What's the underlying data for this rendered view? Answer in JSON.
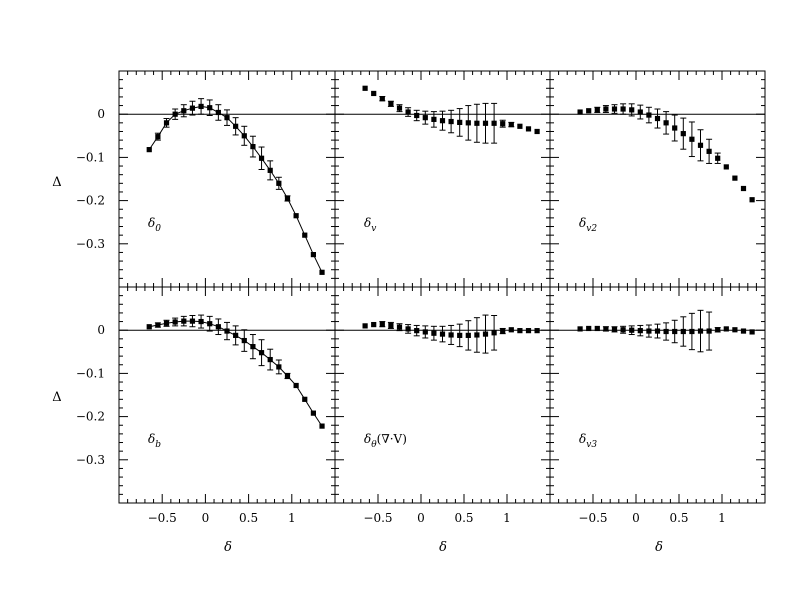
{
  "figure": {
    "xlabel": "δ",
    "ylabel": "Δ",
    "xticks": [
      -0.5,
      0,
      0.5,
      1
    ],
    "yticks": [
      0,
      -0.1,
      -0.2,
      -0.3
    ]
  },
  "chart_data": [
    {
      "type": "line",
      "panel_label": "δ_0",
      "xlabel": "δ",
      "ylabel": "Δ",
      "xlim": [
        -1.0,
        1.5
      ],
      "ylim": [
        -0.4,
        0.1
      ],
      "zero_line": true,
      "connected": true,
      "x": [
        -0.65,
        -0.55,
        -0.45,
        -0.35,
        -0.25,
        -0.15,
        -0.05,
        0.05,
        0.15,
        0.25,
        0.35,
        0.45,
        0.55,
        0.65,
        0.75,
        0.85,
        0.95,
        1.05,
        1.15,
        1.25,
        1.35
      ],
      "y": [
        -0.082,
        -0.052,
        -0.02,
        0.0,
        0.008,
        0.014,
        0.018,
        0.015,
        0.004,
        -0.008,
        -0.028,
        -0.05,
        -0.075,
        -0.102,
        -0.13,
        -0.16,
        -0.195,
        -0.235,
        -0.28,
        -0.325,
        -0.366
      ],
      "err": [
        0.004,
        0.008,
        0.01,
        0.012,
        0.014,
        0.016,
        0.018,
        0.018,
        0.018,
        0.018,
        0.02,
        0.022,
        0.024,
        0.026,
        0.022,
        0.014,
        0.006,
        0.004,
        0.004,
        0.004,
        0.003
      ]
    },
    {
      "type": "line",
      "panel_label": "δ_v",
      "xlabel": "δ",
      "ylabel": "Δ",
      "xlim": [
        -1.0,
        1.5
      ],
      "ylim": [
        -0.4,
        0.1
      ],
      "zero_line": true,
      "connected": false,
      "x": [
        -0.65,
        -0.55,
        -0.45,
        -0.35,
        -0.25,
        -0.15,
        -0.05,
        0.05,
        0.15,
        0.25,
        0.35,
        0.45,
        0.55,
        0.65,
        0.75,
        0.85,
        0.95,
        1.05,
        1.15,
        1.25,
        1.35
      ],
      "y": [
        0.06,
        0.048,
        0.036,
        0.024,
        0.014,
        0.005,
        -0.003,
        -0.008,
        -0.012,
        -0.015,
        -0.017,
        -0.019,
        -0.02,
        -0.021,
        -0.021,
        -0.021,
        -0.022,
        -0.024,
        -0.028,
        -0.034,
        -0.04
      ],
      "err": [
        0.004,
        0.004,
        0.005,
        0.006,
        0.008,
        0.01,
        0.012,
        0.015,
        0.018,
        0.022,
        0.026,
        0.032,
        0.04,
        0.044,
        0.046,
        0.046,
        0.008,
        0.005,
        0.004,
        0.004,
        0.004
      ]
    },
    {
      "type": "line",
      "panel_label": "δ_v2",
      "xlabel": "δ",
      "ylabel": "Δ",
      "xlim": [
        -1.0,
        1.5
      ],
      "ylim": [
        -0.4,
        0.1
      ],
      "zero_line": true,
      "connected": false,
      "x": [
        -0.65,
        -0.55,
        -0.45,
        -0.35,
        -0.25,
        -0.15,
        -0.05,
        0.05,
        0.15,
        0.25,
        0.35,
        0.45,
        0.55,
        0.65,
        0.75,
        0.85,
        0.95,
        1.05,
        1.15,
        1.25,
        1.35
      ],
      "y": [
        0.005,
        0.008,
        0.01,
        0.012,
        0.012,
        0.012,
        0.01,
        0.005,
        -0.002,
        -0.01,
        -0.02,
        -0.032,
        -0.045,
        -0.058,
        -0.072,
        -0.086,
        -0.102,
        -0.122,
        -0.148,
        -0.172,
        -0.198
      ],
      "err": [
        0.003,
        0.004,
        0.006,
        0.008,
        0.01,
        0.012,
        0.014,
        0.016,
        0.018,
        0.022,
        0.026,
        0.03,
        0.036,
        0.04,
        0.036,
        0.028,
        0.012,
        0.004,
        0.003,
        0.003,
        0.003
      ]
    },
    {
      "type": "line",
      "panel_label": "δ_b",
      "xlabel": "δ",
      "ylabel": "Δ",
      "xlim": [
        -1.0,
        1.5
      ],
      "ylim": [
        -0.4,
        0.1
      ],
      "zero_line": true,
      "connected": true,
      "x": [
        -0.65,
        -0.55,
        -0.45,
        -0.35,
        -0.25,
        -0.15,
        -0.05,
        0.05,
        0.15,
        0.25,
        0.35,
        0.45,
        0.55,
        0.65,
        0.75,
        0.85,
        0.95,
        1.05,
        1.15,
        1.25,
        1.35
      ],
      "y": [
        0.008,
        0.012,
        0.016,
        0.019,
        0.021,
        0.021,
        0.02,
        0.015,
        0.008,
        -0.002,
        -0.012,
        -0.024,
        -0.038,
        -0.052,
        -0.068,
        -0.085,
        -0.106,
        -0.128,
        -0.16,
        -0.192,
        -0.222
      ],
      "err": [
        0.003,
        0.005,
        0.007,
        0.009,
        0.011,
        0.013,
        0.015,
        0.017,
        0.018,
        0.02,
        0.022,
        0.025,
        0.028,
        0.03,
        0.024,
        0.016,
        0.006,
        0.004,
        0.004,
        0.004,
        0.003
      ]
    },
    {
      "type": "line",
      "panel_label": "δ_θ(∇·V)",
      "xlabel": "δ",
      "ylabel": "Δ",
      "xlim": [
        -1.0,
        1.5
      ],
      "ylim": [
        -0.4,
        0.1
      ],
      "zero_line": true,
      "connected": false,
      "x": [
        -0.65,
        -0.55,
        -0.45,
        -0.35,
        -0.25,
        -0.15,
        -0.05,
        0.05,
        0.15,
        0.25,
        0.35,
        0.45,
        0.55,
        0.65,
        0.75,
        0.85,
        0.95,
        1.05,
        1.15,
        1.25,
        1.35
      ],
      "y": [
        0.01,
        0.013,
        0.014,
        0.011,
        0.007,
        0.003,
        -0.001,
        -0.004,
        -0.007,
        -0.009,
        -0.011,
        -0.012,
        -0.012,
        -0.011,
        -0.009,
        -0.006,
        -0.002,
        0.001,
        -0.001,
        -0.001,
        -0.001
      ],
      "err": [
        0.003,
        0.004,
        0.006,
        0.007,
        0.008,
        0.01,
        0.012,
        0.014,
        0.016,
        0.018,
        0.022,
        0.026,
        0.034,
        0.04,
        0.044,
        0.04,
        0.006,
        0.003,
        0.002,
        0.002,
        0.002
      ]
    },
    {
      "type": "line",
      "panel_label": "δ_v3",
      "xlabel": "δ",
      "ylabel": "Δ",
      "xlim": [
        -1.0,
        1.5
      ],
      "ylim": [
        -0.4,
        0.1
      ],
      "zero_line": true,
      "connected": false,
      "x": [
        -0.65,
        -0.55,
        -0.45,
        -0.35,
        -0.25,
        -0.15,
        -0.05,
        0.05,
        0.15,
        0.25,
        0.35,
        0.45,
        0.55,
        0.65,
        0.75,
        0.85,
        0.95,
        1.05,
        1.15,
        1.25,
        1.35
      ],
      "y": [
        0.003,
        0.004,
        0.004,
        0.003,
        0.002,
        0.001,
        0.0,
        -0.001,
        -0.002,
        -0.002,
        -0.003,
        -0.003,
        -0.003,
        -0.003,
        -0.002,
        -0.002,
        0.001,
        0.003,
        0.001,
        -0.002,
        -0.004
      ],
      "err": [
        0.002,
        0.003,
        0.004,
        0.005,
        0.006,
        0.008,
        0.01,
        0.012,
        0.014,
        0.016,
        0.02,
        0.026,
        0.034,
        0.042,
        0.048,
        0.044,
        0.005,
        0.003,
        0.002,
        0.002,
        0.002
      ]
    }
  ]
}
